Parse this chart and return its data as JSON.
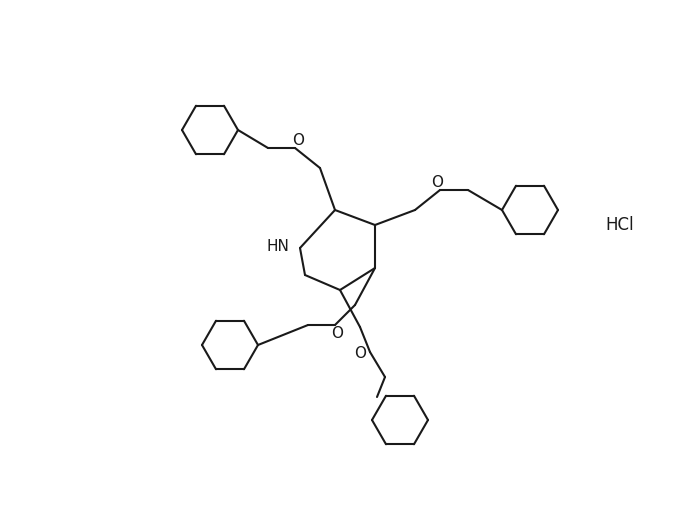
{
  "background_color": "#ffffff",
  "line_color": "#1a1a1a",
  "line_width": 1.5,
  "hcl_text": "HCl",
  "hn_text": "HN",
  "o_text": "O",
  "figsize": [
    6.96,
    5.2
  ],
  "dpi": 100
}
